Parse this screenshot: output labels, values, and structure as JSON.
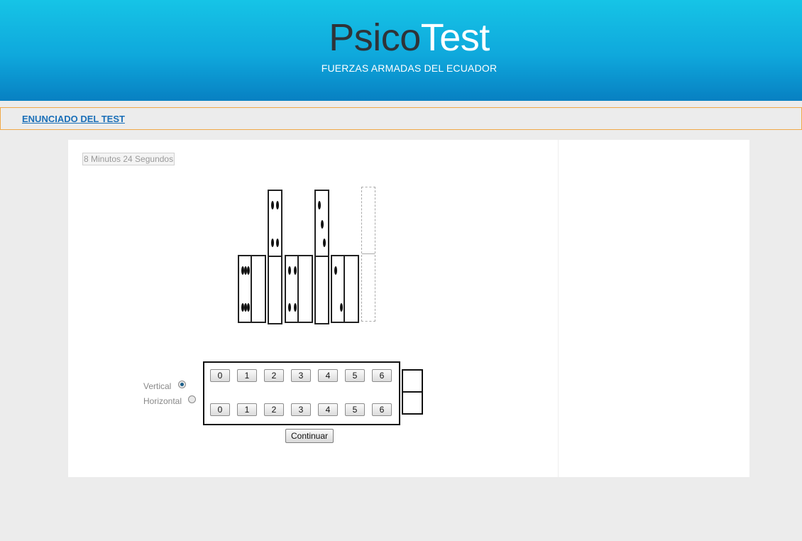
{
  "header": {
    "title_part1": "Psico",
    "title_part2": "Test",
    "subtitle": "FUERZAS ARMADAS DEL ECUADOR"
  },
  "nav": {
    "link_label": "ENUNCIADO DEL TEST"
  },
  "timer": {
    "text": "8 Minutos 24 Segundos"
  },
  "dominoes": [
    {
      "orientation": "horizontal",
      "left": 6,
      "right": 0
    },
    {
      "orientation": "vertical",
      "top": 4,
      "bottom": 0
    },
    {
      "orientation": "horizontal",
      "left": 4,
      "right": 0
    },
    {
      "orientation": "vertical",
      "top": 3,
      "bottom": 0
    },
    {
      "orientation": "horizontal",
      "left": 2,
      "right": 0
    },
    {
      "orientation": "vertical",
      "top": null,
      "bottom": null
    }
  ],
  "orientation_options": {
    "vertical_label": "Vertical",
    "horizontal_label": "Horizontal",
    "selected": "vertical"
  },
  "number_buttons": {
    "top_row": [
      "0",
      "1",
      "2",
      "3",
      "4",
      "5",
      "6"
    ],
    "bottom_row": [
      "0",
      "1",
      "2",
      "3",
      "4",
      "5",
      "6"
    ]
  },
  "continue_label": "Continuar"
}
